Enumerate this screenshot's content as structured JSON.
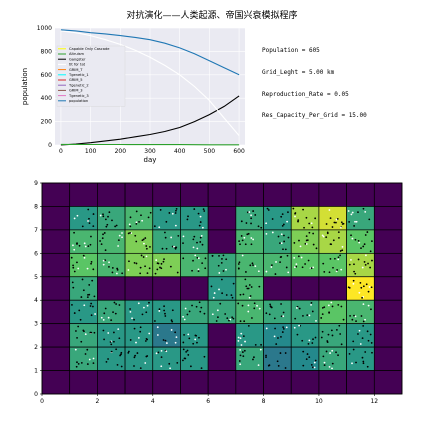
{
  "figure": {
    "title": "对抗演化——人类起源、帝国兴衰模拟程序",
    "info_lines": [
      "Population = 605",
      "Grid_Leght = 5.00 km",
      "Reproduction_Rate = 0.05",
      "Res_Capacity_Per_Grid = 15.00"
    ]
  },
  "chart_data": [
    {
      "type": "line",
      "xlabel": "day",
      "ylabel": "population",
      "xlim": [
        -20,
        620
      ],
      "ylim": [
        0,
        1000
      ],
      "xticks": [
        0,
        100,
        200,
        300,
        400,
        500,
        600
      ],
      "yticks": [
        0,
        200,
        400,
        600,
        800,
        1000
      ],
      "grid": true,
      "background": "#eaeaf2",
      "legend_position": "left-middle",
      "legend": [
        "Capable Only Cascade",
        "Altruism",
        "Gangster",
        "tit for tat",
        "GRIM_T",
        "Tgenetic_1",
        "GRIM_5",
        "Tgenetic_2",
        "GRIM_3",
        "Tgenetic_3",
        "population"
      ],
      "series": [
        {
          "name": "population",
          "color": "#1f77b4",
          "x": [
            0,
            50,
            100,
            150,
            200,
            250,
            300,
            350,
            400,
            450,
            500,
            550,
            600
          ],
          "y": [
            985,
            975,
            960,
            950,
            935,
            920,
            900,
            870,
            830,
            780,
            720,
            660,
            600
          ]
        },
        {
          "name": "Gangster",
          "color": "#000000",
          "x": [
            0,
            50,
            100,
            150,
            200,
            250,
            300,
            350,
            400,
            450,
            500,
            550,
            600
          ],
          "y": [
            0,
            8,
            20,
            35,
            50,
            70,
            90,
            115,
            150,
            200,
            260,
            330,
            420
          ]
        },
        {
          "name": "tit for tat",
          "color": "#ffffff",
          "x": [
            0,
            50,
            100,
            150,
            200,
            250,
            300,
            350,
            400,
            450,
            500,
            550,
            600
          ],
          "y": [
            975,
            960,
            935,
            900,
            860,
            810,
            750,
            680,
            600,
            500,
            380,
            230,
            80
          ]
        },
        {
          "name": "Altruism",
          "color": "#2ca02c",
          "x": [
            0,
            100,
            200,
            300,
            400,
            500,
            600
          ],
          "y": [
            5,
            4,
            4,
            3,
            3,
            2,
            2
          ]
        }
      ],
      "colors": {
        "Capable Only Cascade": "#ffff00",
        "Altruism": "#2ca02c",
        "Gangster": "#000000",
        "tit for tat": "#ffffff",
        "GRIM_T": "#ff7f0e",
        "Tgenetic_1": "#00ffff",
        "GRIM_5": "#d62728",
        "Tgenetic_2": "#9467bd",
        "GRIM_3": "#8c564b",
        "Tgenetic_3": "#e377c2",
        "population": "#1f77b4"
      }
    },
    {
      "type": "heatmap",
      "xlim": [
        0,
        13
      ],
      "ylim": [
        0,
        9
      ],
      "xticks": [
        0,
        2,
        4,
        6,
        8,
        10,
        12
      ],
      "yticks": [
        0,
        1,
        2,
        3,
        4,
        5,
        6,
        7,
        8,
        9
      ],
      "colormap": "viridis",
      "value_range": [
        0,
        15
      ],
      "rows_top_to_bottom": [
        [
          0,
          0,
          0,
          0,
          0,
          0,
          0,
          0,
          0,
          0,
          0,
          0,
          0
        ],
        [
          0,
          8,
          9,
          10,
          8,
          8,
          0,
          9,
          8,
          13,
          14,
          9,
          0
        ],
        [
          0,
          10,
          10,
          12,
          9,
          9,
          0,
          10,
          9,
          12,
          13,
          11,
          0
        ],
        [
          0,
          11,
          10,
          12,
          12,
          10,
          9,
          10,
          10,
          11,
          11,
          13,
          0
        ],
        [
          0,
          9,
          0,
          0,
          0,
          0,
          8,
          10,
          0,
          0,
          0,
          15,
          0
        ],
        [
          0,
          8,
          9,
          8,
          8,
          9,
          9,
          10,
          9,
          9,
          11,
          10,
          0
        ],
        [
          0,
          9,
          8,
          8,
          6,
          8,
          0,
          8,
          7,
          8,
          9,
          8,
          0
        ],
        [
          0,
          9,
          8,
          8,
          8,
          8,
          0,
          9,
          6,
          7,
          9,
          8,
          0
        ],
        [
          0,
          0,
          0,
          0,
          0,
          0,
          0,
          0,
          0,
          0,
          0,
          0,
          0
        ]
      ],
      "markers": {
        "black": "Gangster",
        "white": "tit for tat"
      }
    }
  ]
}
